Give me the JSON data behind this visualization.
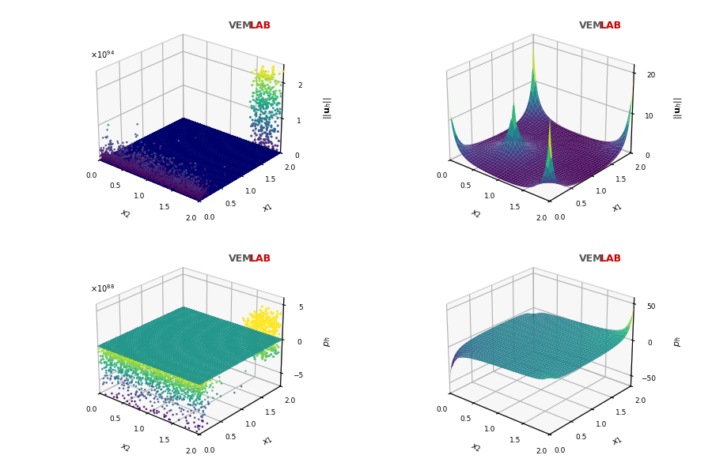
{
  "background_color": "#ffffff",
  "title_color_vem": "#555555",
  "title_color_lab": "#cc0000",
  "elev": 25,
  "azim": -50,
  "plots": [
    {
      "type": "scatter_flat",
      "plane_color": "#00008B",
      "plane_alpha": 0.95,
      "zlim": [
        0,
        2.5
      ],
      "zticks": [
        0,
        1,
        2
      ],
      "exponent": "94",
      "zlabel": "$||\\mathbf{u}_h||$",
      "xlabel": "$x_2$",
      "ylabel": "$x_1$"
    },
    {
      "type": "surface_uh",
      "zlim": [
        0,
        22
      ],
      "zticks": [
        0,
        10,
        20
      ],
      "zlabel": "$||\\mathbf{u}_h||$",
      "xlabel": "$x_2$",
      "ylabel": "$x_1$"
    },
    {
      "type": "scatter_flat_p",
      "plane_color": "#2EC4B6",
      "plane_alpha": 0.85,
      "zlim": [
        -7,
        6
      ],
      "zticks": [
        -5,
        0,
        5
      ],
      "exponent": "88",
      "zlabel": "$p_h$",
      "xlabel": "$x_2$",
      "ylabel": "$x_1$"
    },
    {
      "type": "surface_ph",
      "zlim": [
        -65,
        58
      ],
      "zticks": [
        -50,
        0,
        50
      ],
      "zlabel": "$p_h$",
      "xlabel": "$x_2$",
      "ylabel": "$x_1$"
    }
  ]
}
